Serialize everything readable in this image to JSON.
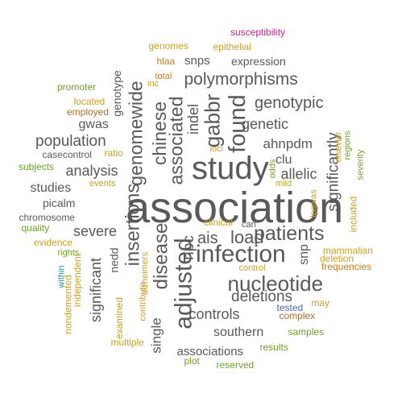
{
  "palette": {
    "dark": "#595959",
    "gold": "#C9A227",
    "olive": "#6FA12C",
    "orange": "#D07A22",
    "magenta": "#CC1F8F",
    "blue": "#4F67B0",
    "teal": "#2A8F8F",
    "brown": "#B0702A"
  },
  "words": [
    {
      "text": "association",
      "color": "dark",
      "vertical": false
    },
    {
      "text": "study",
      "color": "dark",
      "vertical": false
    },
    {
      "text": "adjusted",
      "color": "dark",
      "vertical": true
    },
    {
      "text": "infection",
      "color": "dark",
      "vertical": false
    },
    {
      "text": "patients",
      "color": "dark",
      "vertical": false
    },
    {
      "text": "nucleotide",
      "color": "dark",
      "vertical": false
    },
    {
      "text": "insertions",
      "color": "dark",
      "vertical": true
    },
    {
      "text": "genomewide",
      "color": "dark",
      "vertical": true
    },
    {
      "text": "associated",
      "color": "dark",
      "vertical": true
    },
    {
      "text": "chinese",
      "color": "dark",
      "vertical": true
    },
    {
      "text": "found",
      "color": "dark",
      "vertical": true
    },
    {
      "text": "gabbr",
      "color": "dark",
      "vertical": true
    },
    {
      "text": "disease",
      "color": "dark",
      "vertical": true
    },
    {
      "text": "polymorphisms",
      "color": "dark",
      "vertical": false
    },
    {
      "text": "genotypic",
      "color": "dark",
      "vertical": false
    },
    {
      "text": "population",
      "color": "dark",
      "vertical": false
    },
    {
      "text": "analysis",
      "color": "dark",
      "vertical": false
    },
    {
      "text": "load",
      "color": "dark",
      "vertical": false
    },
    {
      "text": "ais",
      "color": "dark",
      "vertical": false
    },
    {
      "text": "npc",
      "color": "dark",
      "vertical": true
    },
    {
      "text": "significant",
      "color": "dark",
      "vertical": true
    },
    {
      "text": "single",
      "color": "dark",
      "vertical": true
    },
    {
      "text": "controls",
      "color": "dark",
      "vertical": false
    },
    {
      "text": "deletions",
      "color": "dark",
      "vertical": false
    },
    {
      "text": "southern",
      "color": "dark",
      "vertical": false
    },
    {
      "text": "associations",
      "color": "dark",
      "vertical": false
    },
    {
      "text": "significantly",
      "color": "dark",
      "vertical": true
    },
    {
      "text": "genetic",
      "color": "dark",
      "vertical": false
    },
    {
      "text": "ahnpdm",
      "color": "dark",
      "vertical": false
    },
    {
      "text": "allelic",
      "color": "dark",
      "vertical": false
    },
    {
      "text": "clu",
      "color": "dark",
      "vertical": false
    },
    {
      "text": "indel",
      "color": "dark",
      "vertical": true
    },
    {
      "text": "snp",
      "color": "dark",
      "vertical": true
    },
    {
      "text": "severe",
      "color": "dark",
      "vertical": false
    },
    {
      "text": "studies",
      "color": "dark",
      "vertical": false
    },
    {
      "text": "picalm",
      "color": "dark",
      "vertical": false
    },
    {
      "text": "gwas",
      "color": "dark",
      "vertical": false
    },
    {
      "text": "nedd",
      "color": "dark",
      "vertical": true
    },
    {
      "text": "expression",
      "color": "dark",
      "vertical": false
    },
    {
      "text": "snps",
      "color": "dark",
      "vertical": false
    },
    {
      "text": "genotype",
      "color": "dark",
      "vertical": true
    },
    {
      "text": "chromosome",
      "color": "dark",
      "vertical": false
    },
    {
      "text": "casecontrol",
      "color": "dark",
      "vertical": false
    },
    {
      "text": "can",
      "color": "dark",
      "vertical": false
    },
    {
      "text": "susceptibility",
      "color": "magenta",
      "vertical": false
    },
    {
      "text": "genomes",
      "color": "gold",
      "vertical": false
    },
    {
      "text": "epithelial",
      "color": "gold",
      "vertical": false
    },
    {
      "text": "hlaa",
      "color": "orange",
      "vertical": false
    },
    {
      "text": "total",
      "color": "orange",
      "vertical": false
    },
    {
      "text": "inc",
      "color": "gold",
      "vertical": false
    },
    {
      "text": "promoter",
      "color": "olive",
      "vertical": false
    },
    {
      "text": "located",
      "color": "gold",
      "vertical": false
    },
    {
      "text": "employed",
      "color": "brown",
      "vertical": false
    },
    {
      "text": "ratio",
      "color": "gold",
      "vertical": false
    },
    {
      "text": "subjects",
      "color": "olive",
      "vertical": false
    },
    {
      "text": "events",
      "color": "gold",
      "vertical": false
    },
    {
      "text": "loci",
      "color": "gold",
      "vertical": false
    },
    {
      "text": "odds",
      "color": "olive",
      "vertical": true
    },
    {
      "text": "mild",
      "color": "gold",
      "vertical": false
    },
    {
      "text": "elsevier",
      "color": "gold",
      "vertical": true
    },
    {
      "text": "regions",
      "color": "olive",
      "vertical": true
    },
    {
      "text": "severity",
      "color": "olive",
      "vertical": true
    },
    {
      "text": "lpgwas",
      "color": "gold",
      "vertical": true
    },
    {
      "text": "included",
      "color": "gold",
      "vertical": true
    },
    {
      "text": "quality",
      "color": "olive",
      "vertical": false
    },
    {
      "text": "evidence",
      "color": "gold",
      "vertical": false
    },
    {
      "text": "rights",
      "color": "olive",
      "vertical": false
    },
    {
      "text": "within",
      "color": "teal",
      "vertical": true
    },
    {
      "text": "independent",
      "color": "gold",
      "vertical": true
    },
    {
      "text": "nondemented",
      "color": "gold",
      "vertical": true
    },
    {
      "text": "examined",
      "color": "gold",
      "vertical": true
    },
    {
      "text": "contribute",
      "color": "gold",
      "vertical": true
    },
    {
      "text": "alzheimers",
      "color": "gold",
      "vertical": true
    },
    {
      "text": "multiple",
      "color": "gold",
      "vertical": false
    },
    {
      "text": "clinical",
      "color": "gold",
      "vertical": false
    },
    {
      "text": "control",
      "color": "gold",
      "vertical": false
    },
    {
      "text": "tested",
      "color": "blue",
      "vertical": false
    },
    {
      "text": "complex",
      "color": "brown",
      "vertical": false
    },
    {
      "text": "may",
      "color": "gold",
      "vertical": false
    },
    {
      "text": "mammalian",
      "color": "gold",
      "vertical": false
    },
    {
      "text": "deletion",
      "color": "gold",
      "vertical": false
    },
    {
      "text": "frequencies",
      "color": "orange",
      "vertical": false
    },
    {
      "text": "samples",
      "color": "olive",
      "vertical": false
    },
    {
      "text": "results",
      "color": "olive",
      "vertical": false
    },
    {
      "text": "plot",
      "color": "olive",
      "vertical": false
    },
    {
      "text": "reserved",
      "color": "olive",
      "vertical": false
    }
  ]
}
